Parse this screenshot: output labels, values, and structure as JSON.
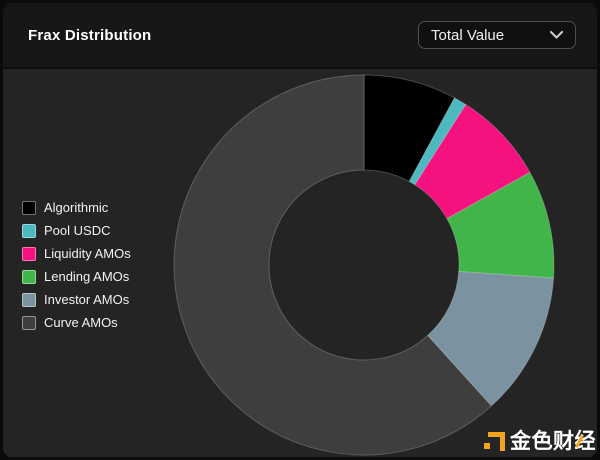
{
  "header": {
    "title": "Frax Distribution",
    "dropdown": {
      "value": "Total Value",
      "chevron_icon": "chevron-down"
    }
  },
  "chart_data": {
    "type": "pie",
    "subtype": "donut",
    "title": "Frax Distribution",
    "labels": [
      "Algorithmic",
      "Pool USDC",
      "Liquidity AMOs",
      "Lending AMOs",
      "Investor AMOs",
      "Curve AMOs"
    ],
    "values": [
      7.9,
      1.1,
      7.9,
      9.2,
      12.2,
      61.7
    ],
    "unit": "percent_of_total",
    "colors": [
      "#000000",
      "#4cb8bf",
      "#f5127e",
      "#41b549",
      "#7b93a1",
      "#3e3e3e"
    ],
    "legend_position": "left",
    "hole_ratio": 0.5,
    "start_angle_deg": 0,
    "direction": "clockwise",
    "slice_border_color": "rgba(255,255,255,0.22)"
  },
  "watermark": {
    "text": "金色财经",
    "brand_color": "#f2a31d"
  },
  "theme": {
    "page_bg": "#0b0b0b",
    "header_bg": "#171717",
    "body_bg": "#242424",
    "text_color": "#ffffff",
    "dropdown_border": "#4f4f4f"
  }
}
